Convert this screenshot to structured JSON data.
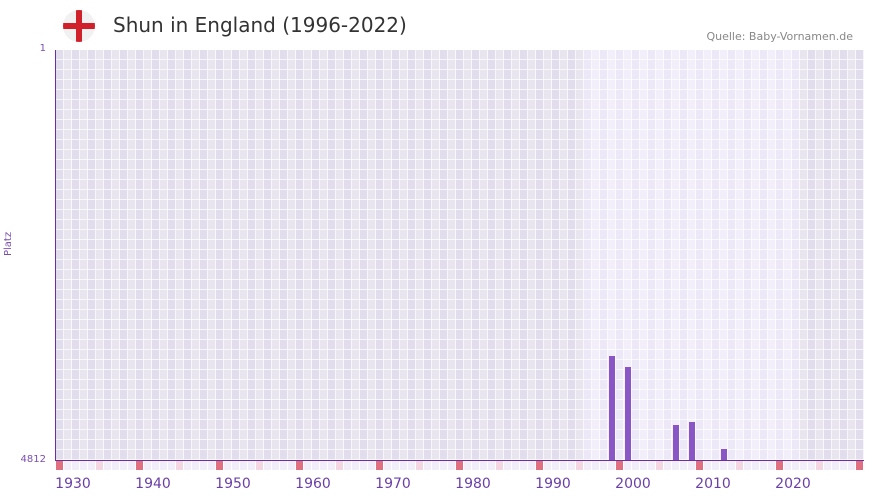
{
  "header": {
    "flag_icon": "england-flag-icon",
    "title": "Shun in England (1996-2022)",
    "source": "Quelle: Baby-Vornamen.de"
  },
  "chart_data": {
    "type": "bar",
    "title": "Shun in England (1996-2022)",
    "xlabel": "",
    "ylabel": "Platz",
    "y_inverted": true,
    "ylim": [
      1,
      4812
    ],
    "y_ticks": [
      "1",
      "4812"
    ],
    "x_range": [
      1928,
      2028
    ],
    "x_ticks": [
      "1930",
      "1940",
      "1950",
      "1960",
      "1970",
      "1980",
      "1990",
      "2000",
      "2010",
      "2020"
    ],
    "data_range_years": [
      1994,
      2020
    ],
    "categories": [
      "1997",
      "1999",
      "2005",
      "2007",
      "2011"
    ],
    "values": [
      3590,
      3720,
      4400,
      4365,
      4685
    ],
    "grid": true,
    "legend": null,
    "colors": {
      "bar": "#8a56c6",
      "axis": "#6b2fa0",
      "decade_marker": "#e07080",
      "half_decade_marker": "#f3d6e0",
      "grid_bg_dark": "#e4e0ee",
      "grid_bg_light": "#f0ecf9"
    }
  }
}
